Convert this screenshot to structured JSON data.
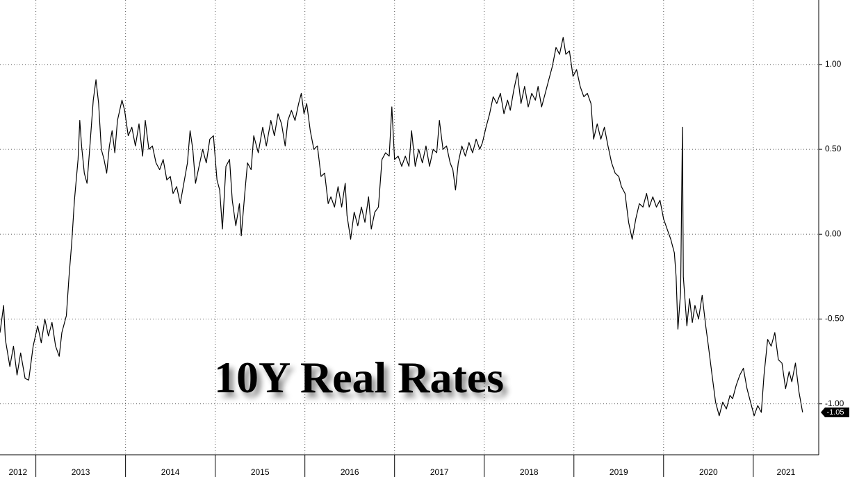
{
  "chart_data": {
    "type": "line",
    "title": "10Y Real Rates",
    "color": "#000000",
    "x": [
      2012.6,
      2012.64,
      2012.66,
      2012.71,
      2012.75,
      2012.79,
      2012.83,
      2012.88,
      2012.92,
      2012.97,
      2013.02,
      2013.06,
      2013.1,
      2013.14,
      2013.18,
      2013.22,
      2013.26,
      2013.29,
      2013.34,
      2013.37,
      2013.4,
      2013.43,
      2013.47,
      2013.49,
      2013.51,
      2013.54,
      2013.57,
      2013.6,
      2013.64,
      2013.67,
      2013.7,
      2013.73,
      2013.76,
      2013.79,
      2013.82,
      2013.85,
      2013.88,
      2013.91,
      2013.96,
      2013.99,
      2014.03,
      2014.07,
      2014.11,
      2014.15,
      2014.19,
      2014.22,
      2014.26,
      2014.3,
      2014.34,
      2014.38,
      2014.42,
      2014.46,
      2014.5,
      2014.53,
      2014.57,
      2014.61,
      2014.65,
      2014.69,
      2014.72,
      2014.75,
      2014.78,
      2014.82,
      2014.86,
      2014.9,
      2014.94,
      2014.98,
      2015.02,
      2015.05,
      2015.08,
      2015.12,
      2015.16,
      2015.19,
      2015.23,
      2015.27,
      2015.29,
      2015.33,
      2015.36,
      2015.4,
      2015.43,
      2015.48,
      2015.53,
      2015.57,
      2015.62,
      2015.66,
      2015.7,
      2015.74,
      2015.78,
      2015.81,
      2015.85,
      2015.89,
      2015.93,
      2015.96,
      2015.99,
      2016.02,
      2016.06,
      2016.1,
      2016.14,
      2016.18,
      2016.22,
      2016.26,
      2016.29,
      2016.33,
      2016.37,
      2016.41,
      2016.45,
      2016.47,
      2016.51,
      2016.55,
      2016.59,
      2016.63,
      2016.67,
      2016.71,
      2016.74,
      2016.78,
      2016.82,
      2016.86,
      2016.9,
      2016.94,
      2016.97,
      2017.0,
      2017.04,
      2017.08,
      2017.12,
      2017.16,
      2017.19,
      2017.23,
      2017.27,
      2017.31,
      2017.35,
      2017.39,
      2017.43,
      2017.47,
      2017.5,
      2017.54,
      2017.58,
      2017.62,
      2017.65,
      2017.68,
      2017.71,
      2017.75,
      2017.79,
      2017.83,
      2017.87,
      2017.91,
      2017.95,
      2017.98,
      2018.02,
      2018.06,
      2018.1,
      2018.14,
      2018.18,
      2018.22,
      2018.26,
      2018.29,
      2018.33,
      2018.37,
      2018.41,
      2018.45,
      2018.49,
      2018.53,
      2018.57,
      2018.6,
      2018.64,
      2018.68,
      2018.72,
      2018.76,
      2018.8,
      2018.84,
      2018.88,
      2018.91,
      2018.95,
      2018.99,
      2019.03,
      2019.07,
      2019.11,
      2019.15,
      2019.19,
      2019.22,
      2019.26,
      2019.3,
      2019.34,
      2019.38,
      2019.42,
      2019.46,
      2019.5,
      2019.53,
      2019.57,
      2019.61,
      2019.65,
      2019.69,
      2019.73,
      2019.77,
      2019.81,
      2019.84,
      2019.88,
      2019.92,
      2019.96,
      2020.0,
      2020.04,
      2020.08,
      2020.12,
      2020.14,
      2020.16,
      2020.19,
      2020.21,
      2020.22,
      2020.26,
      2020.29,
      2020.32,
      2020.35,
      2020.39,
      2020.43,
      2020.47,
      2020.5,
      2020.54,
      2020.58,
      2020.62,
      2020.66,
      2020.7,
      2020.74,
      2020.77,
      2020.81,
      2020.85,
      2020.89,
      2020.93,
      2020.97,
      2021.01,
      2021.05,
      2021.09,
      2021.12,
      2021.16,
      2021.2,
      2021.24,
      2021.28,
      2021.32,
      2021.36,
      2021.4,
      2021.43,
      2021.47,
      2021.51,
      2021.55
    ],
    "values": [
      -0.58,
      -0.42,
      -0.62,
      -0.78,
      -0.66,
      -0.83,
      -0.7,
      -0.85,
      -0.86,
      -0.66,
      -0.54,
      -0.64,
      -0.5,
      -0.6,
      -0.52,
      -0.66,
      -0.72,
      -0.58,
      -0.48,
      -0.25,
      -0.05,
      0.2,
      0.44,
      0.67,
      0.52,
      0.36,
      0.3,
      0.5,
      0.79,
      0.91,
      0.77,
      0.5,
      0.44,
      0.36,
      0.52,
      0.61,
      0.48,
      0.67,
      0.79,
      0.73,
      0.58,
      0.63,
      0.52,
      0.65,
      0.46,
      0.67,
      0.5,
      0.52,
      0.42,
      0.38,
      0.44,
      0.32,
      0.34,
      0.24,
      0.28,
      0.18,
      0.3,
      0.42,
      0.61,
      0.5,
      0.3,
      0.4,
      0.5,
      0.42,
      0.56,
      0.58,
      0.32,
      0.26,
      0.03,
      0.4,
      0.44,
      0.2,
      0.05,
      0.18,
      -0.01,
      0.24,
      0.42,
      0.38,
      0.58,
      0.48,
      0.63,
      0.52,
      0.67,
      0.58,
      0.71,
      0.65,
      0.52,
      0.67,
      0.73,
      0.67,
      0.77,
      0.83,
      0.71,
      0.77,
      0.61,
      0.5,
      0.52,
      0.34,
      0.36,
      0.18,
      0.22,
      0.16,
      0.28,
      0.16,
      0.3,
      0.11,
      -0.03,
      0.13,
      0.05,
      0.16,
      0.07,
      0.22,
      0.03,
      0.13,
      0.16,
      0.44,
      0.48,
      0.46,
      0.75,
      0.44,
      0.46,
      0.4,
      0.46,
      0.4,
      0.61,
      0.4,
      0.5,
      0.42,
      0.52,
      0.4,
      0.5,
      0.48,
      0.67,
      0.5,
      0.52,
      0.42,
      0.38,
      0.26,
      0.42,
      0.52,
      0.46,
      0.54,
      0.48,
      0.56,
      0.5,
      0.54,
      0.63,
      0.71,
      0.81,
      0.77,
      0.83,
      0.71,
      0.79,
      0.73,
      0.85,
      0.95,
      0.77,
      0.87,
      0.75,
      0.83,
      0.79,
      0.87,
      0.75,
      0.83,
      0.91,
      0.99,
      1.1,
      1.06,
      1.16,
      1.06,
      1.08,
      0.93,
      0.97,
      0.87,
      0.81,
      0.83,
      0.77,
      0.56,
      0.65,
      0.56,
      0.63,
      0.52,
      0.42,
      0.36,
      0.34,
      0.28,
      0.24,
      0.07,
      -0.03,
      0.09,
      0.18,
      0.16,
      0.24,
      0.16,
      0.22,
      0.16,
      0.2,
      0.09,
      0.03,
      -0.03,
      -0.11,
      -0.25,
      -0.56,
      -0.34,
      0.63,
      -0.25,
      -0.54,
      -0.38,
      -0.52,
      -0.42,
      -0.5,
      -0.36,
      -0.54,
      -0.66,
      -0.83,
      -0.99,
      -1.07,
      -0.99,
      -1.03,
      -0.95,
      -0.97,
      -0.89,
      -0.83,
      -0.79,
      -0.91,
      -0.99,
      -1.07,
      -1.01,
      -1.05,
      -0.83,
      -0.62,
      -0.66,
      -0.58,
      -0.74,
      -0.76,
      -0.91,
      -0.81,
      -0.87,
      -0.76,
      -0.93,
      -1.05
    ],
    "end_label": "-1.05",
    "xlim": [
      2012.6,
      2021.73
    ],
    "xticks": [
      {
        "value": 2012,
        "label": "2012"
      },
      {
        "value": 2013,
        "label": "2013"
      },
      {
        "value": 2014,
        "label": "2014"
      },
      {
        "value": 2015,
        "label": "2015"
      },
      {
        "value": 2016,
        "label": "2016"
      },
      {
        "value": 2017,
        "label": "2017"
      },
      {
        "value": 2018,
        "label": "2018"
      },
      {
        "value": 2019,
        "label": "2019"
      },
      {
        "value": 2020,
        "label": "2020"
      },
      {
        "value": 2021,
        "label": "2021"
      }
    ],
    "ylim": [
      -1.3,
      1.38
    ],
    "yticks": [
      {
        "value": 1,
        "label": "1.00"
      },
      {
        "value": 0.5,
        "label": "0.50"
      },
      {
        "value": 0,
        "label": "0.00"
      },
      {
        "value": -0.5,
        "label": "-0.50"
      },
      {
        "value": -1,
        "label": "-1.00"
      }
    ],
    "grid": true
  }
}
